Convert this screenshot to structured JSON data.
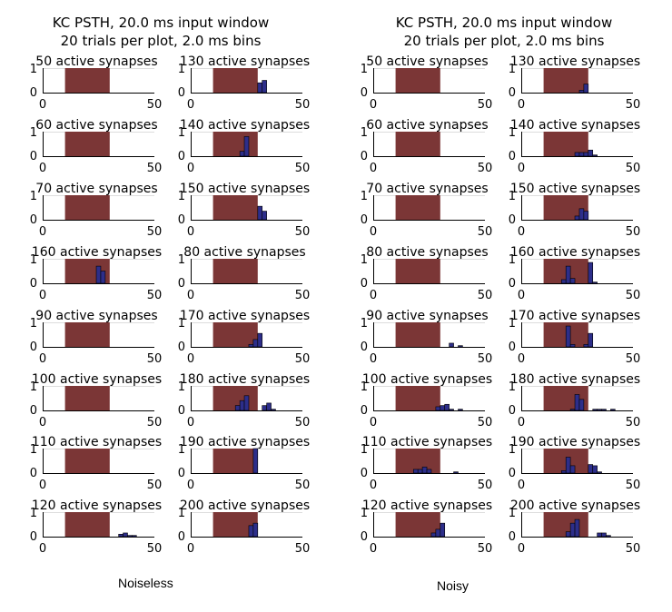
{
  "chart_data": [
    {
      "type": "bar",
      "title": [
        "KC PSTH,  20.0 ms input window",
        "20 trials per plot, 2.0 ms bins"
      ],
      "caption": "Noiseless",
      "xlim": [
        0,
        50
      ],
      "ylim": [
        0,
        1
      ],
      "xticks": [
        "0",
        "50"
      ],
      "yticks": [
        "0",
        "1"
      ],
      "bin_ms": 2.0,
      "input_window": [
        10,
        30
      ],
      "colors": {
        "bars": "#2d2e8a",
        "window": "#7b3636"
      },
      "subplots": [
        {
          "label": "50 active synapses",
          "bins": []
        },
        {
          "label": "130 active synapses",
          "bins": [
            [
              30,
              0.4
            ],
            [
              32,
              0.5
            ]
          ]
        },
        {
          "label": "60 active synapses",
          "bins": []
        },
        {
          "label": "140 active synapses",
          "bins": [
            [
              22,
              0.2
            ],
            [
              24,
              0.8
            ]
          ]
        },
        {
          "label": "70 active synapses",
          "bins": []
        },
        {
          "label": "150 active synapses",
          "bins": [
            [
              30,
              0.55
            ],
            [
              32,
              0.35
            ]
          ]
        },
        {
          "label": "160 active synapses",
          "bins": [
            [
              24,
              0.7
            ],
            [
              26,
              0.5
            ]
          ]
        },
        {
          "label": "80 active synapses",
          "bins": []
        },
        {
          "label": "90 active synapses",
          "bins": []
        },
        {
          "label": "170 active synapses",
          "bins": [
            [
              26,
              0.1
            ],
            [
              28,
              0.3
            ],
            [
              30,
              0.55
            ]
          ]
        },
        {
          "label": "100 active synapses",
          "bins": []
        },
        {
          "label": "180 active synapses",
          "bins": [
            [
              20,
              0.2
            ],
            [
              22,
              0.4
            ],
            [
              24,
              0.6
            ],
            [
              32,
              0.2
            ],
            [
              34,
              0.3
            ],
            [
              36,
              0.05
            ]
          ]
        },
        {
          "label": "110 active synapses",
          "bins": []
        },
        {
          "label": "190 active synapses",
          "bins": [
            [
              28,
              1.0
            ]
          ]
        },
        {
          "label": "120 active synapses",
          "bins": [
            [
              34,
              0.1
            ],
            [
              36,
              0.15
            ],
            [
              38,
              0.05
            ],
            [
              40,
              0.05
            ]
          ]
        },
        {
          "label": "200 active synapses",
          "bins": [
            [
              26,
              0.45
            ],
            [
              28,
              0.55
            ]
          ]
        }
      ]
    },
    {
      "type": "bar",
      "title": [
        "KC PSTH,  20.0 ms input window",
        "20 trials per plot, 2.0 ms bins"
      ],
      "caption": "Noisy",
      "xlim": [
        0,
        50
      ],
      "ylim": [
        0,
        1
      ],
      "xticks": [
        "0",
        "50"
      ],
      "yticks": [
        "0",
        "1"
      ],
      "bin_ms": 2.0,
      "input_window": [
        10,
        30
      ],
      "colors": {
        "bars": "#2d2e8a",
        "window": "#7b3636"
      },
      "subplots": [
        {
          "label": "50 active synapses",
          "bins": []
        },
        {
          "label": "130 active synapses",
          "bins": [
            [
              26,
              0.1
            ],
            [
              28,
              0.35
            ]
          ]
        },
        {
          "label": "60 active synapses",
          "bins": []
        },
        {
          "label": "140 active synapses",
          "bins": [
            [
              24,
              0.15
            ],
            [
              26,
              0.15
            ],
            [
              28,
              0.15
            ],
            [
              30,
              0.25
            ],
            [
              32,
              0.05
            ]
          ]
        },
        {
          "label": "70 active synapses",
          "bins": []
        },
        {
          "label": "150 active synapses",
          "bins": [
            [
              24,
              0.15
            ],
            [
              26,
              0.45
            ],
            [
              28,
              0.35
            ]
          ]
        },
        {
          "label": "80 active synapses",
          "bins": []
        },
        {
          "label": "160 active synapses",
          "bins": [
            [
              18,
              0.15
            ],
            [
              20,
              0.7
            ],
            [
              22,
              0.2
            ],
            [
              30,
              0.85
            ],
            [
              32,
              0.05
            ]
          ]
        },
        {
          "label": "90 active synapses",
          "bins": [
            [
              34,
              0.15
            ],
            [
              38,
              0.05
            ]
          ]
        },
        {
          "label": "170 active synapses",
          "bins": [
            [
              20,
              0.85
            ],
            [
              22,
              0.1
            ],
            [
              28,
              0.1
            ],
            [
              30,
              0.55
            ]
          ]
        },
        {
          "label": "100 active synapses",
          "bins": [
            [
              28,
              0.15
            ],
            [
              30,
              0.2
            ],
            [
              32,
              0.25
            ],
            [
              34,
              0.05
            ],
            [
              38,
              0.05
            ]
          ]
        },
        {
          "label": "180 active synapses",
          "bins": [
            [
              22,
              0.05
            ],
            [
              24,
              0.65
            ],
            [
              26,
              0.45
            ],
            [
              32,
              0.05
            ],
            [
              34,
              0.05
            ],
            [
              36,
              0.05
            ],
            [
              40,
              0.05
            ]
          ]
        },
        {
          "label": "110 active synapses",
          "bins": [
            [
              18,
              0.15
            ],
            [
              20,
              0.15
            ],
            [
              22,
              0.25
            ],
            [
              24,
              0.15
            ],
            [
              36,
              0.05
            ]
          ]
        },
        {
          "label": "190 active synapses",
          "bins": [
            [
              18,
              0.1
            ],
            [
              20,
              0.65
            ],
            [
              22,
              0.3
            ],
            [
              30,
              0.35
            ],
            [
              32,
              0.3
            ],
            [
              34,
              0.05
            ]
          ]
        },
        {
          "label": "120 active synapses",
          "bins": [
            [
              26,
              0.15
            ],
            [
              28,
              0.3
            ],
            [
              30,
              0.55
            ]
          ]
        },
        {
          "label": "200 active synapses",
          "bins": [
            [
              20,
              0.2
            ],
            [
              22,
              0.55
            ],
            [
              24,
              0.7
            ],
            [
              34,
              0.15
            ],
            [
              36,
              0.15
            ],
            [
              38,
              0.05
            ]
          ]
        }
      ]
    }
  ]
}
